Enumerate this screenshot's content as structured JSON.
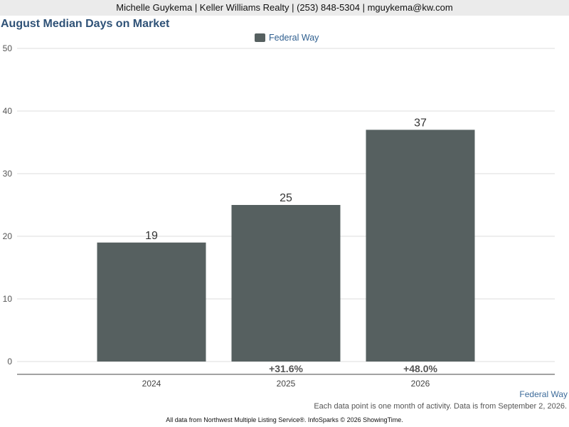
{
  "header": {
    "contact": "Michelle Guykema | Keller Williams Realty | (253) 848-5304 | mguykema@kw.com"
  },
  "colors": {
    "bar": "#566060",
    "title": "#2f5277",
    "gridline": "#dddddd",
    "change_label": "#555555"
  },
  "chart_data": {
    "type": "bar",
    "title": "August Median Days on Market",
    "xlabel": "",
    "ylabel": "",
    "categories": [
      "2024",
      "2025",
      "2026"
    ],
    "series": [
      {
        "name": "Federal Way",
        "values": [
          19,
          25,
          37
        ]
      }
    ],
    "data_labels": [
      "19",
      "25",
      "37"
    ],
    "change_labels": [
      "",
      "+31.6%",
      "+48.0%"
    ],
    "ylim": [
      0,
      50
    ],
    "yticks": [
      0,
      10,
      20,
      30,
      40,
      50
    ],
    "grid": true,
    "legend_position": "top-center"
  },
  "footer": {
    "series_label": "Federal Way",
    "note": "Each data point is one month of activity. Data is from September 2, 2026.",
    "source": "All data from Northwest Multiple Listing Service®. InfoSparks © 2026 ShowingTime."
  }
}
